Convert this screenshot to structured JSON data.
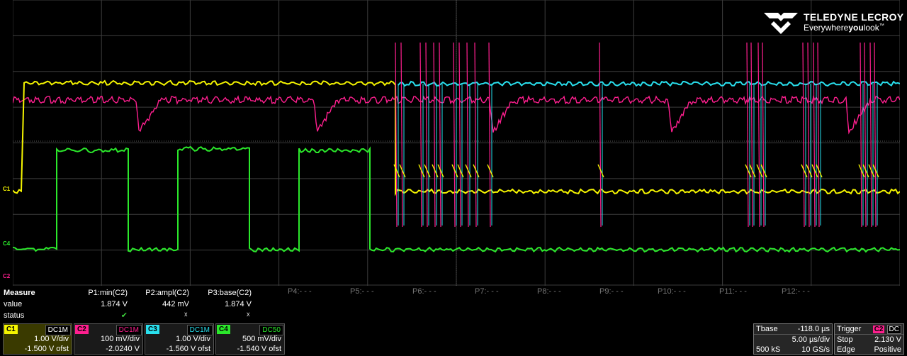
{
  "brand": {
    "name": "TELEDYNE LECROY",
    "tag_pre": "Everywhere",
    "tag_bold": "you",
    "tag_post": "look",
    "tm": "™"
  },
  "colors": {
    "c1": "#f5f500",
    "c2": "#ff1f8f",
    "c3": "#29e0ee",
    "c4": "#2be82b",
    "grid": "#3c3c3c"
  },
  "markers": {
    "c1": "C1",
    "c4": "C4",
    "c2": "C2"
  },
  "measure": {
    "title": "Measure",
    "row_labels": [
      "value",
      "status"
    ],
    "params": [
      {
        "label": "P1:min(C2)",
        "value": "1.874 V",
        "status": "ok"
      },
      {
        "label": "P2:ampl(C2)",
        "value": "442 mV",
        "status": "x"
      },
      {
        "label": "P3:base(C2)",
        "value": "1.874 V",
        "status": "x"
      }
    ],
    "empty": [
      "P4:- - -",
      "P5:- - -",
      "P6:- - -",
      "P7:- - -",
      "P8:- - -",
      "P9:- - -",
      "P10:- - -",
      "P11:- - -",
      "P12:- - -"
    ],
    "status_ok": "✔",
    "status_x": "☓"
  },
  "channels": [
    {
      "tag": "C1",
      "coupling": "DC1M",
      "scale": "1.00 V/div",
      "offset": "-1.500 V ofst",
      "color": "#f5f500"
    },
    {
      "tag": "C2",
      "coupling": "DC1M",
      "scale": "100 mV/div",
      "offset": "-2.0240 V",
      "color": "#ff1f8f"
    },
    {
      "tag": "C3",
      "coupling": "DC1M",
      "scale": "1.00 V/div",
      "offset": "-1.560 V ofst",
      "color": "#29e0ee"
    },
    {
      "tag": "C4",
      "coupling": "DC50",
      "scale": "500 mV/div",
      "offset": "-1.540 V ofst",
      "color": "#2be82b"
    }
  ],
  "timebase": {
    "label": "Tbase",
    "delay": "-118.0 µs",
    "scale": "5.00 µs/div",
    "samples": "500 kS",
    "rate": "10 GS/s"
  },
  "trigger": {
    "label": "Trigger",
    "source": "C2",
    "coupling": "DC",
    "mode": "Stop",
    "level": "2.130 V",
    "type": "Edge",
    "slope": "Positive"
  }
}
